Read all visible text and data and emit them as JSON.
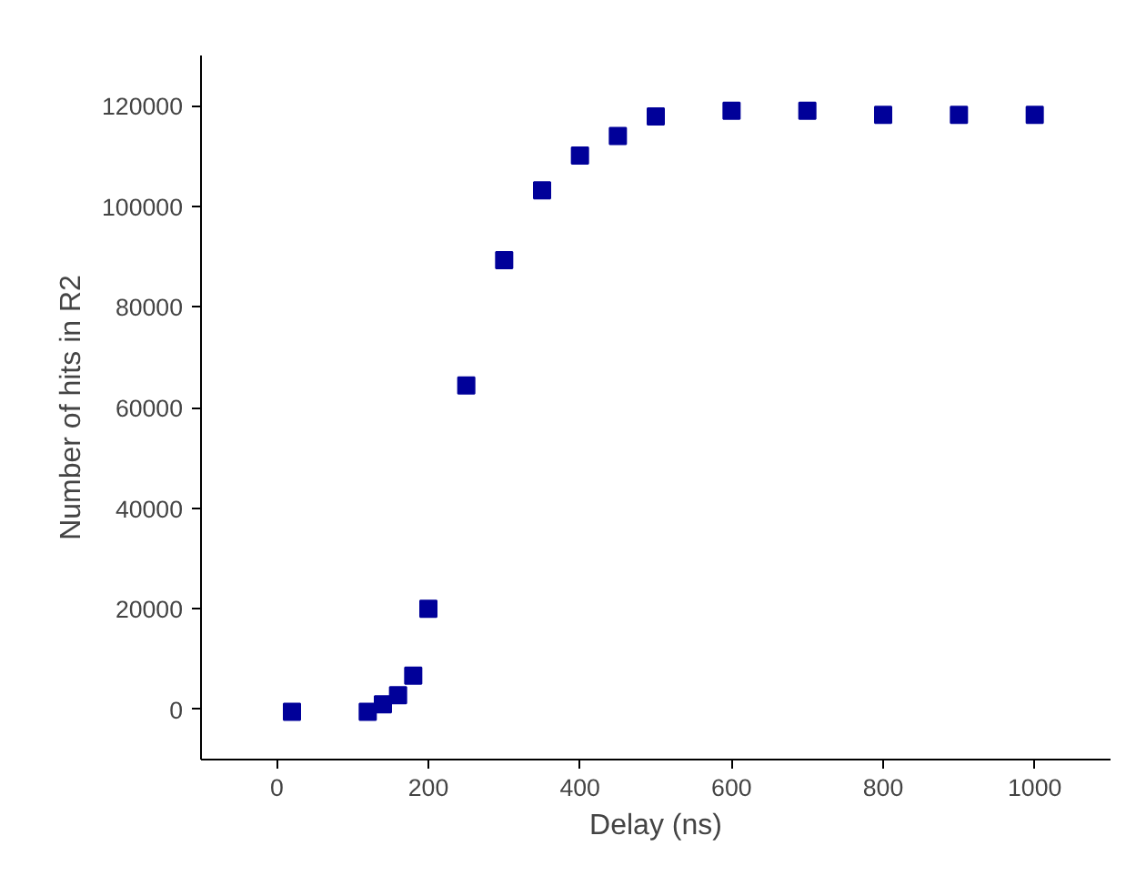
{
  "chart_data": {
    "type": "scatter",
    "xlabel": "Delay (ns)",
    "ylabel": "Number of hits in R2",
    "x": [
      20,
      120,
      140,
      160,
      180,
      200,
      250,
      300,
      350,
      400,
      450,
      500,
      600,
      700,
      800,
      900,
      1000
    ],
    "values": [
      -500,
      -500,
      1000,
      2800,
      6700,
      20000,
      64400,
      89300,
      103200,
      110100,
      114000,
      117900,
      119000,
      119000,
      118200,
      118200,
      118200
    ],
    "color": "#000099",
    "marker": "square",
    "grid": false,
    "xlim": [
      -100,
      1100
    ],
    "xticks": [
      0,
      200,
      400,
      600,
      800,
      1000
    ],
    "ylim": [
      -10000,
      130000
    ],
    "yticks": [
      0,
      20000,
      40000,
      60000,
      80000,
      100000,
      120000
    ]
  }
}
